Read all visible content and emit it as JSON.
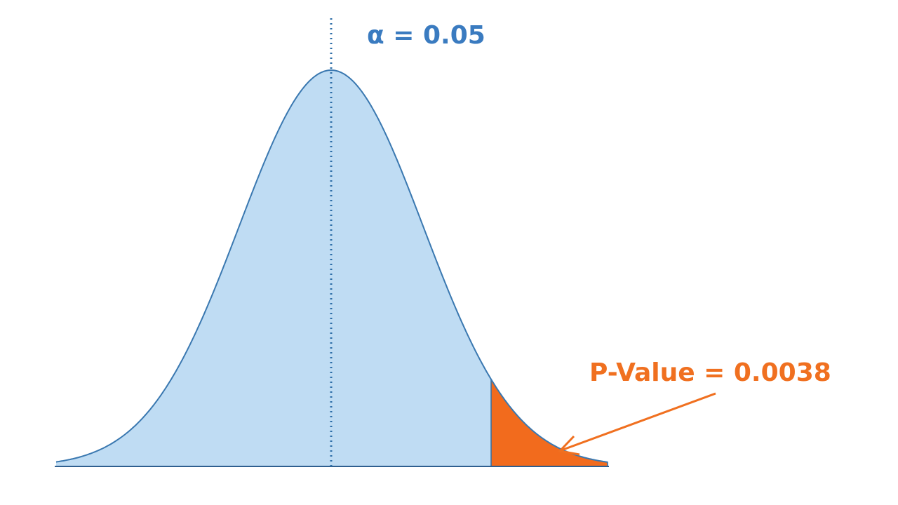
{
  "annotations": {
    "alpha": "α = 0.05",
    "p_value": "P-Value = 0.0038"
  }
}
